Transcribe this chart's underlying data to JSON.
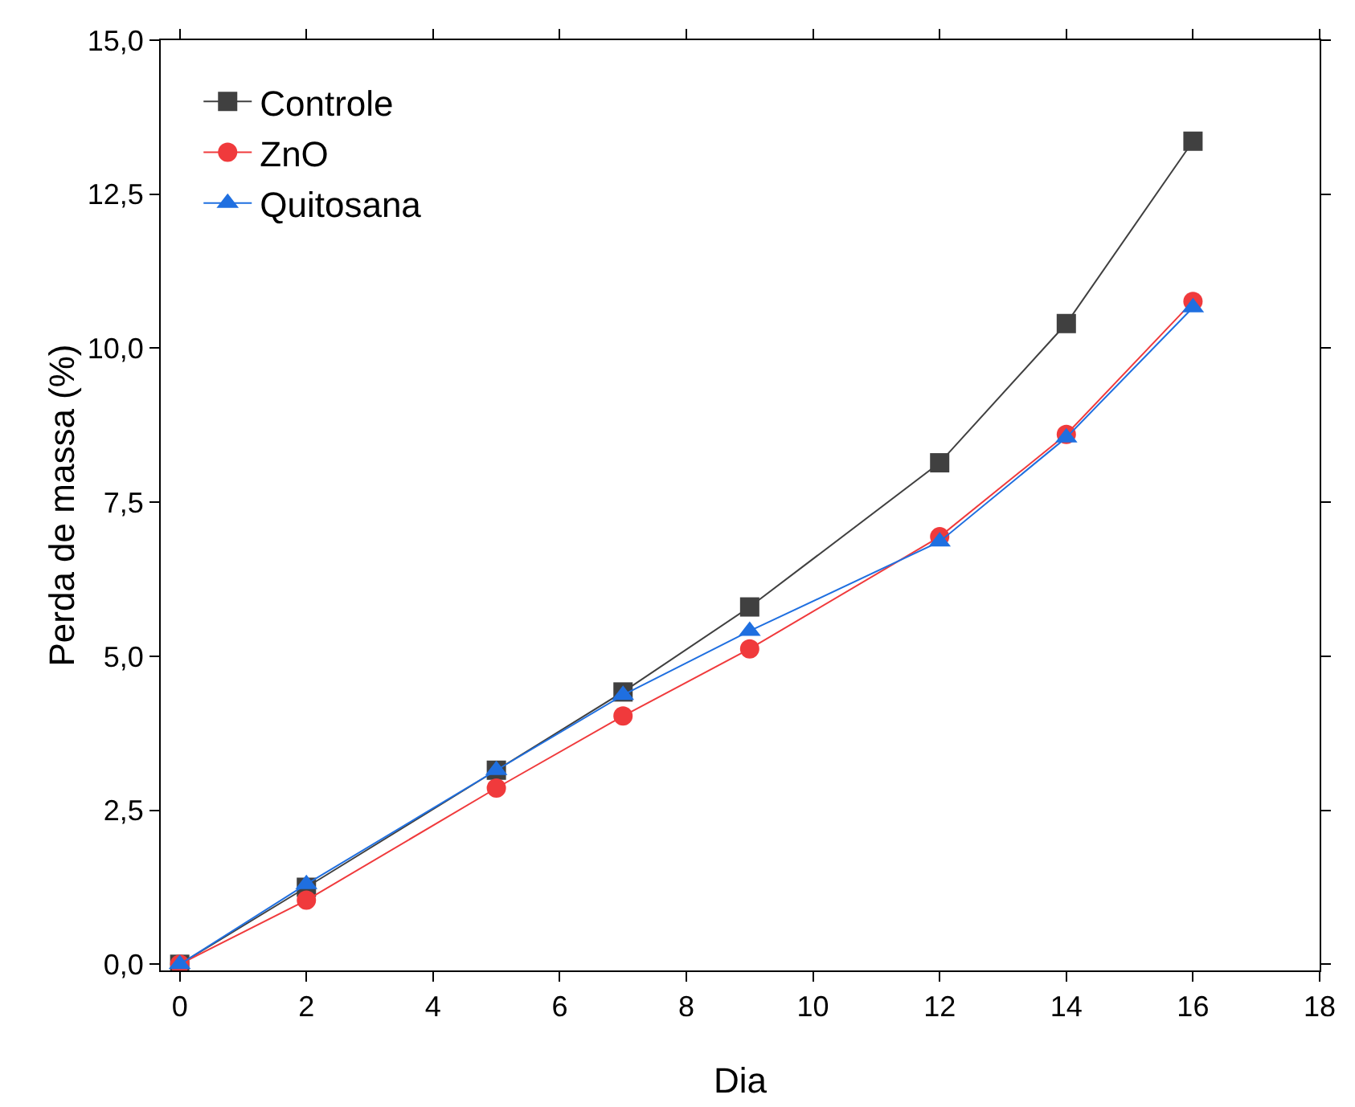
{
  "chart_data": {
    "type": "line",
    "xlabel": "Dia",
    "ylabel": "Perda de massa (%)",
    "x": [
      0,
      2,
      5,
      7,
      9,
      12,
      14,
      16
    ],
    "series": [
      {
        "name": "Controle",
        "color": "#404040",
        "marker": "square",
        "values": [
          0,
          1.25,
          3.15,
          4.42,
          5.8,
          8.14,
          10.4,
          13.36
        ]
      },
      {
        "name": "ZnO",
        "color": "#f03a3c",
        "marker": "circle",
        "values": [
          0,
          1.04,
          2.86,
          4.03,
          5.12,
          6.94,
          8.6,
          10.76
        ]
      },
      {
        "name": "Quitosana",
        "color": "#1f6fe0",
        "marker": "triangle",
        "values": [
          0,
          1.3,
          3.15,
          4.37,
          5.41,
          6.86,
          8.55,
          10.66
        ]
      }
    ],
    "xlim": [
      -0.3,
      18
    ],
    "xticks": [
      0,
      2,
      4,
      6,
      8,
      10,
      12,
      14,
      16,
      18
    ],
    "ylim": [
      -0.1,
      15
    ],
    "yticks": [
      {
        "value": 0,
        "label": "0,0"
      },
      {
        "value": 2.5,
        "label": "2,5"
      },
      {
        "value": 5,
        "label": "5,0"
      },
      {
        "value": 7.5,
        "label": "7,5"
      },
      {
        "value": 10,
        "label": "10,0"
      },
      {
        "value": 12.5,
        "label": "12,5"
      },
      {
        "value": 15,
        "label": "15,0"
      }
    ],
    "grid": false,
    "legend": "top left",
    "line_style": "solid"
  }
}
